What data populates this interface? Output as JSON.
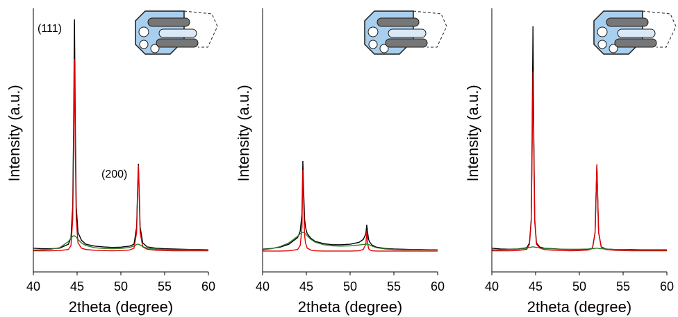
{
  "chart_data": [
    {
      "type": "line",
      "x_label": "2theta (degree)",
      "y_label": "Intensity (a.u.)",
      "x": [
        40,
        41,
        42,
        43,
        44,
        44.3,
        44.5,
        44.6,
        44.7,
        44.8,
        44.9,
        45.1,
        45.5,
        46,
        47,
        48,
        49,
        50,
        51,
        51.5,
        51.8,
        51.9,
        52,
        52.1,
        52.2,
        52.5,
        53,
        54,
        55,
        56,
        57,
        58,
        59,
        60
      ],
      "xlim": [
        40,
        60
      ],
      "xticks": [
        40,
        45,
        50,
        55,
        60
      ],
      "ylim": [
        0,
        100
      ],
      "annotations": [
        "(111)",
        "(200)"
      ],
      "series": [
        {
          "color": "#000000",
          "values": [
            9,
            8.8,
            8.8,
            9,
            10.5,
            13,
            25,
            55,
            95.8,
            55,
            25,
            15,
            12,
            10.5,
            9.8,
            9.5,
            9.3,
            9.4,
            9.8,
            10.5,
            17,
            30,
            41,
            30,
            17,
            11,
            9.5,
            9,
            8.8,
            8.7,
            8.6,
            8.5,
            8.5,
            8.4
          ]
        },
        {
          "color": "#e00000",
          "values": [
            8,
            8,
            8,
            8.1,
            8.5,
            10,
            20,
            45,
            80.8,
            45,
            20,
            11,
            9,
            8.5,
            8.2,
            8.1,
            8,
            8.1,
            8.3,
            9,
            15,
            28,
            40.5,
            28,
            15,
            9.5,
            8.6,
            8.2,
            8.1,
            8,
            8,
            8,
            8,
            8
          ]
        },
        {
          "color": "#2a7a2a",
          "values": [
            8.3,
            8.4,
            8.6,
            9.2,
            11.5,
            12.8,
            13.5,
            13.7,
            13.7,
            13.5,
            13.2,
            12.3,
            11,
            10,
            9.2,
            8.9,
            8.8,
            8.9,
            9.3,
            9.8,
            10.4,
            10.5,
            10.5,
            10.4,
            10.2,
            9.6,
            9,
            8.6,
            8.5,
            8.4,
            8.4,
            8.4,
            8.4,
            8.4
          ]
        }
      ]
    },
    {
      "type": "line",
      "x_label": "2theta (degree)",
      "y_label": "Intensity (a.u.)",
      "x": [
        40,
        41,
        42,
        43,
        44,
        44.3,
        44.5,
        44.6,
        44.7,
        44.8,
        44.9,
        45.1,
        45.5,
        46,
        47,
        48,
        49,
        50,
        51,
        51.5,
        51.8,
        51.9,
        52,
        52.1,
        52.2,
        52.5,
        53,
        54,
        55,
        56,
        57,
        58,
        59,
        60
      ],
      "xlim": [
        40,
        60
      ],
      "xticks": [
        40,
        45,
        50,
        55,
        60
      ],
      "ylim": [
        0,
        100
      ],
      "series": [
        {
          "color": "#000000",
          "values": [
            8.6,
            8.9,
            9.4,
            10.5,
            13,
            15.5,
            22,
            42.1,
            30,
            20,
            17,
            14.5,
            12.8,
            11.6,
            10.7,
            10.3,
            10.3,
            10.5,
            11.2,
            12.3,
            14.5,
            17.9,
            15,
            12.5,
            11.5,
            10.2,
            9.4,
            8.9,
            8.7,
            8.6,
            8.5,
            8.5,
            8.4,
            8.4
          ]
        },
        {
          "color": "#e00000",
          "values": [
            7.9,
            7.9,
            7.9,
            8,
            8.5,
            10,
            17,
            38.7,
            25,
            14,
            11,
            9,
            8.3,
            8,
            7.9,
            7.9,
            7.9,
            7.9,
            8,
            8.5,
            10.5,
            15.5,
            11,
            9,
            8.4,
            8,
            7.9,
            7.9,
            7.9,
            7.9,
            7.9,
            7.9,
            7.9,
            7.9
          ]
        },
        {
          "color": "#2a7a2a",
          "values": [
            8.4,
            8.8,
            9.6,
            11,
            13.5,
            14.5,
            15,
            15,
            14.9,
            14.7,
            14.4,
            13.7,
            12.4,
            11.3,
            10.3,
            9.9,
            9.8,
            9.9,
            10.2,
            10.4,
            10.5,
            10.5,
            10.5,
            10.4,
            10.3,
            9.8,
            9.2,
            8.7,
            8.5,
            8.4,
            8.4,
            8.4,
            8.4,
            8.4
          ]
        }
      ]
    },
    {
      "type": "line",
      "x_label": "2theta (degree)",
      "y_label": "Intensity (a.u.)",
      "x": [
        40,
        41,
        42,
        43,
        44,
        44.3,
        44.5,
        44.6,
        44.7,
        44.8,
        44.9,
        45.1,
        45.5,
        46,
        47,
        48,
        49,
        50,
        51,
        51.5,
        51.8,
        51.9,
        52,
        52.1,
        52.2,
        52.5,
        53,
        54,
        55,
        56,
        57,
        58,
        59,
        60
      ],
      "xlim": [
        40,
        60
      ],
      "xticks": [
        40,
        45,
        50,
        55,
        60
      ],
      "ylim": [
        0,
        100
      ],
      "series": [
        {
          "color": "#000000",
          "values": [
            9,
            8.7,
            8.6,
            8.7,
            9.2,
            11,
            20,
            50,
            93.2,
            50,
            20,
            11,
            9.4,
            9,
            8.8,
            8.6,
            8.5,
            8.5,
            8.6,
            9,
            15,
            28,
            40.8,
            28,
            15,
            9.5,
            8.7,
            8.5,
            8.5,
            8.5,
            8.4,
            8.4,
            8.4,
            8.4
          ]
        },
        {
          "color": "#e00000",
          "values": [
            8,
            8,
            8,
            8.1,
            8.6,
            10.5,
            19,
            45,
            76,
            45,
            19,
            10.5,
            9,
            8.5,
            8.2,
            8.1,
            8,
            8.1,
            8.3,
            8.9,
            15,
            28,
            40.8,
            28,
            15,
            9.4,
            8.5,
            8.2,
            8.1,
            8,
            8,
            8,
            8,
            8
          ]
        },
        {
          "color": "#2a7a2a",
          "values": [
            8.4,
            8.4,
            8.5,
            8.6,
            9,
            9.3,
            9.4,
            9.5,
            9.5,
            9.5,
            9.4,
            9.3,
            9.1,
            8.9,
            8.7,
            8.6,
            8.6,
            8.6,
            8.7,
            8.8,
            8.9,
            9,
            9,
            9,
            8.9,
            8.8,
            8.7,
            8.5,
            8.5,
            8.4,
            8.4,
            8.4,
            8.4,
            8.4
          ]
        }
      ]
    }
  ]
}
